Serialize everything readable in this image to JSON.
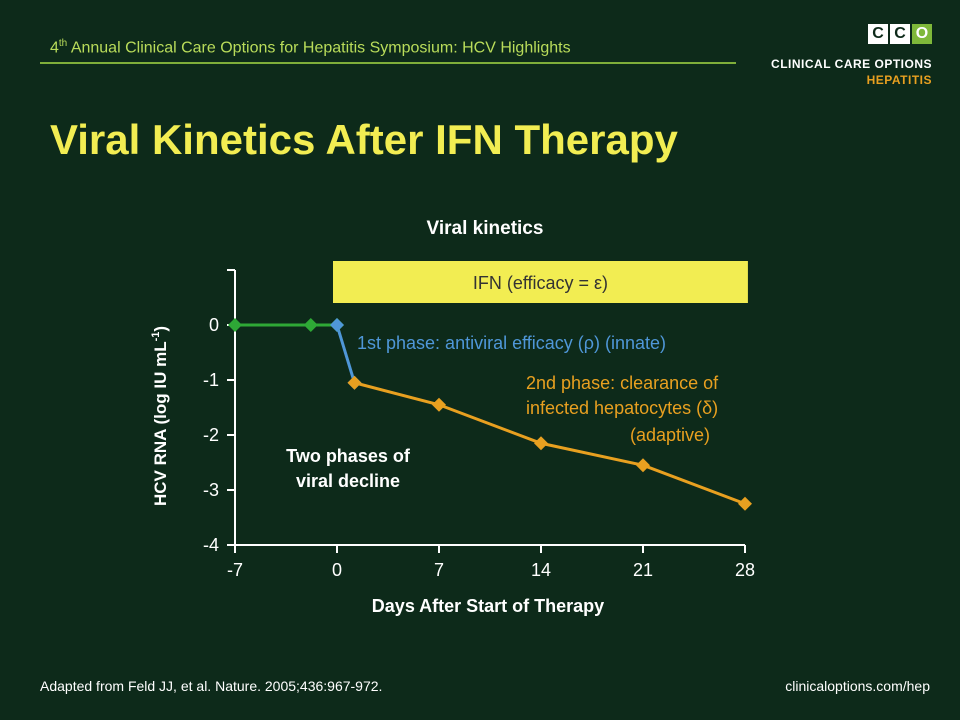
{
  "header": {
    "title_prefix": "4",
    "title_sup": "th",
    "title_rest": " Annual Clinical Care Options for Hepatitis Symposium: HCV Highlights"
  },
  "logo": {
    "letters": [
      "C",
      "C",
      "O"
    ],
    "line1": "CLINICAL CARE OPTIONS",
    "line2": "HEPATITIS",
    "box_colors": [
      "#ffffff",
      "#ffffff",
      "#7fb83a"
    ]
  },
  "slide_title": "Viral Kinetics After IFN Therapy",
  "chart_data": {
    "type": "line",
    "title": "Viral kinetics",
    "xlabel": "Days After Start of Therapy",
    "ylabel": "HCV RNA (log IU mL",
    "ylabel_sup": "-1",
    "ylabel_end": ")",
    "xlim": [
      -7,
      28
    ],
    "ylim": [
      -4,
      1
    ],
    "x_ticks": [
      -7,
      0,
      7,
      14,
      21,
      28
    ],
    "x_tick_labels": [
      "-7",
      "0",
      "7",
      "14",
      "21",
      "28"
    ],
    "y_ticks": [
      0,
      -1,
      -2,
      -3,
      -4
    ],
    "y_tick_labels": [
      "0",
      "-1",
      "-2",
      "-3",
      "-4"
    ],
    "series": [
      {
        "color": "#2ea836",
        "x": [
          -7,
          -1.8,
          0
        ],
        "y": [
          0,
          0,
          0
        ]
      },
      {
        "color": "#4f97d8",
        "x": [
          0,
          1.2
        ],
        "y": [
          0,
          -1.05
        ]
      },
      {
        "color": "#e8a020",
        "x": [
          1.2,
          7,
          14,
          21,
          28
        ],
        "y": [
          -1.05,
          -1.45,
          -2.15,
          -2.55,
          -3.25
        ]
      }
    ],
    "ifn_box": {
      "label": "IFN (efficacy = ε)",
      "x_start": 0,
      "x_end": 28.2,
      "color": "#f2ed52"
    },
    "annotations": {
      "phase1": "1st phase: antiviral efficacy (ρ) (innate)",
      "phase2_line1": "2nd phase: clearance of",
      "phase2_line2": "infected hepatocytes (δ)",
      "phase2_line3": "(adaptive)",
      "two_phases_line1": "Two phases of",
      "two_phases_line2": "viral decline"
    },
    "colors": {
      "axis": "#ffffff",
      "text": "#ffffff",
      "phase1": "#4f97d8",
      "phase2": "#e8a020"
    }
  },
  "footer": {
    "citation": "Adapted from Feld JJ, et al. Nature. 2005;436:967-972.",
    "url": "clinicaloptions.com/hep"
  }
}
